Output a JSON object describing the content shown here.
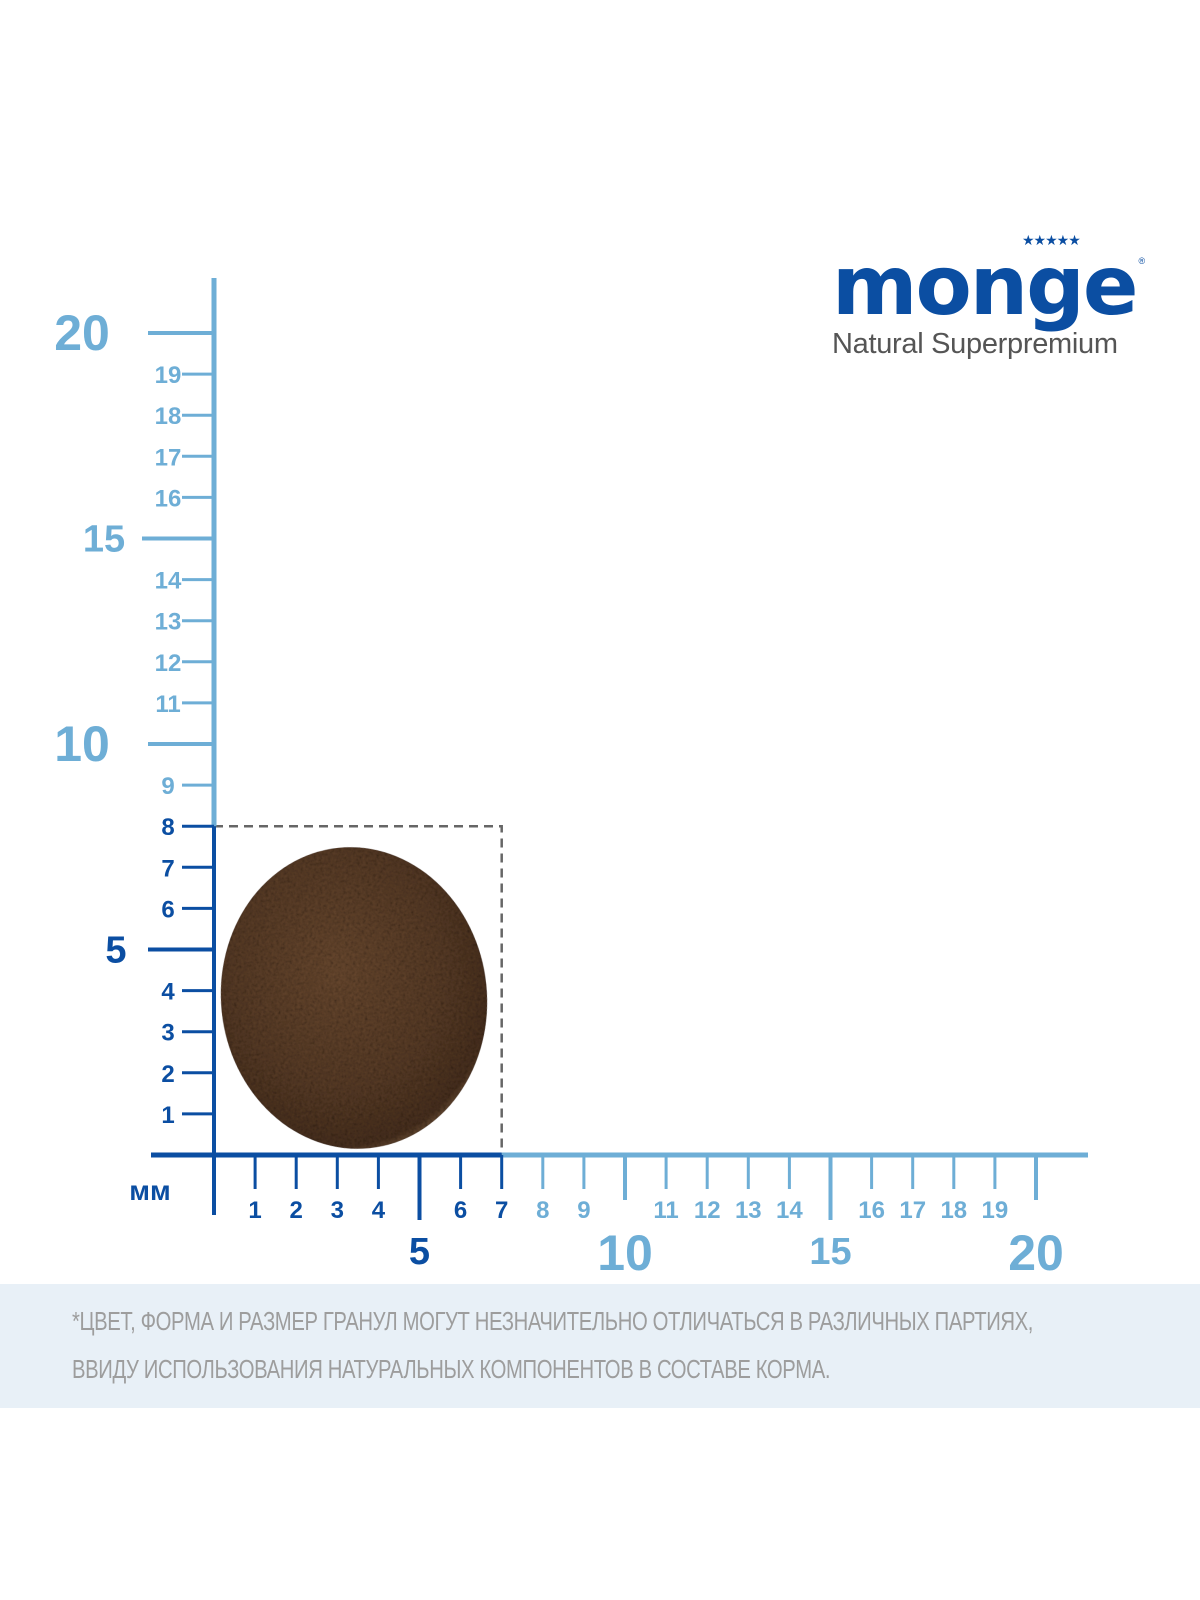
{
  "brand": {
    "name": "Monge",
    "tagline": "Natural Superpremium",
    "stars": "★★★★★",
    "registered": "®"
  },
  "ruler": {
    "unit_label": "мм",
    "range_mm": [
      0,
      20
    ],
    "highlight_width_mm": 7,
    "highlight_height_mm": 8,
    "x_minor_labels": [
      "1",
      "2",
      "3",
      "4",
      "6",
      "7",
      "8",
      "9",
      "11",
      "12",
      "13",
      "14",
      "16",
      "17",
      "18",
      "19"
    ],
    "x_major_labels": [
      "5",
      "10",
      "15",
      "20"
    ],
    "y_minor_labels": [
      "1",
      "2",
      "3",
      "4",
      "6",
      "7",
      "8",
      "9",
      "11",
      "12",
      "13",
      "14",
      "16",
      "17",
      "18",
      "19"
    ],
    "y_major_labels": [
      "5",
      "10",
      "15",
      "20"
    ],
    "colors": {
      "dark": "#0b4ea2",
      "light": "#6eaed6",
      "dashed_box": "#666666",
      "banner": "#e8f0f7"
    }
  },
  "disclaimer": {
    "line1": "*ЦВЕТ, ФОРМА И РАЗМЕР ГРАНУЛ МОГУТ НЕЗНАЧИТЕЛЬНО ОТЛИЧАТЬСЯ В РАЗЛИЧНЫХ ПАРТИЯХ,",
    "line2": "ВВИДУ ИСПОЛЬЗОВАНИЯ НАТУРАЛЬНЫХ КОМПОНЕНТОВ В СОСТАВЕ КОРМА."
  }
}
